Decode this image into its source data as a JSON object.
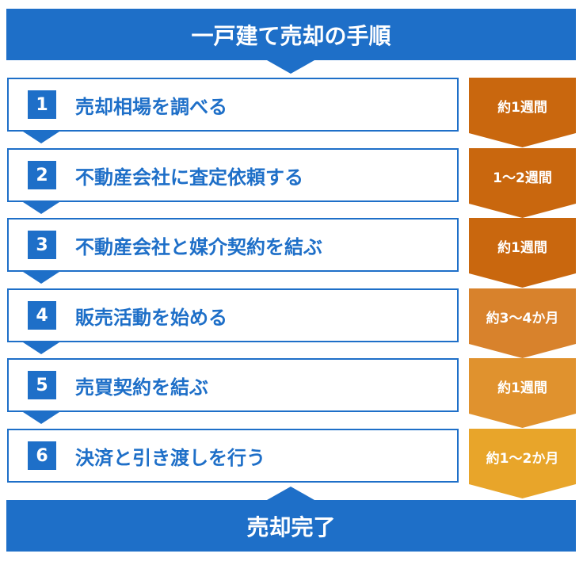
{
  "title": "一戸建て売却の手順",
  "footer": "売却完了",
  "colors": {
    "primary": "#1e6fc8",
    "duration_fills": [
      "#c9670e",
      "#c9670e",
      "#c9670e",
      "#d8822c",
      "#e0922e",
      "#e8a52a"
    ]
  },
  "steps": [
    {
      "num": "1",
      "label": "売却相場を調べる",
      "duration": "約1週間"
    },
    {
      "num": "2",
      "label": "不動産会社に査定依頼する",
      "duration": "1～2週間"
    },
    {
      "num": "3",
      "label": "不動産会社と媒介契約を結ぶ",
      "duration": "約1週間"
    },
    {
      "num": "4",
      "label": "販売活動を始める",
      "duration": "約3～4か月"
    },
    {
      "num": "5",
      "label": "売買契約を結ぶ",
      "duration": "約1週間"
    },
    {
      "num": "6",
      "label": "決済と引き渡しを行う",
      "duration": "約1～2か月"
    }
  ]
}
